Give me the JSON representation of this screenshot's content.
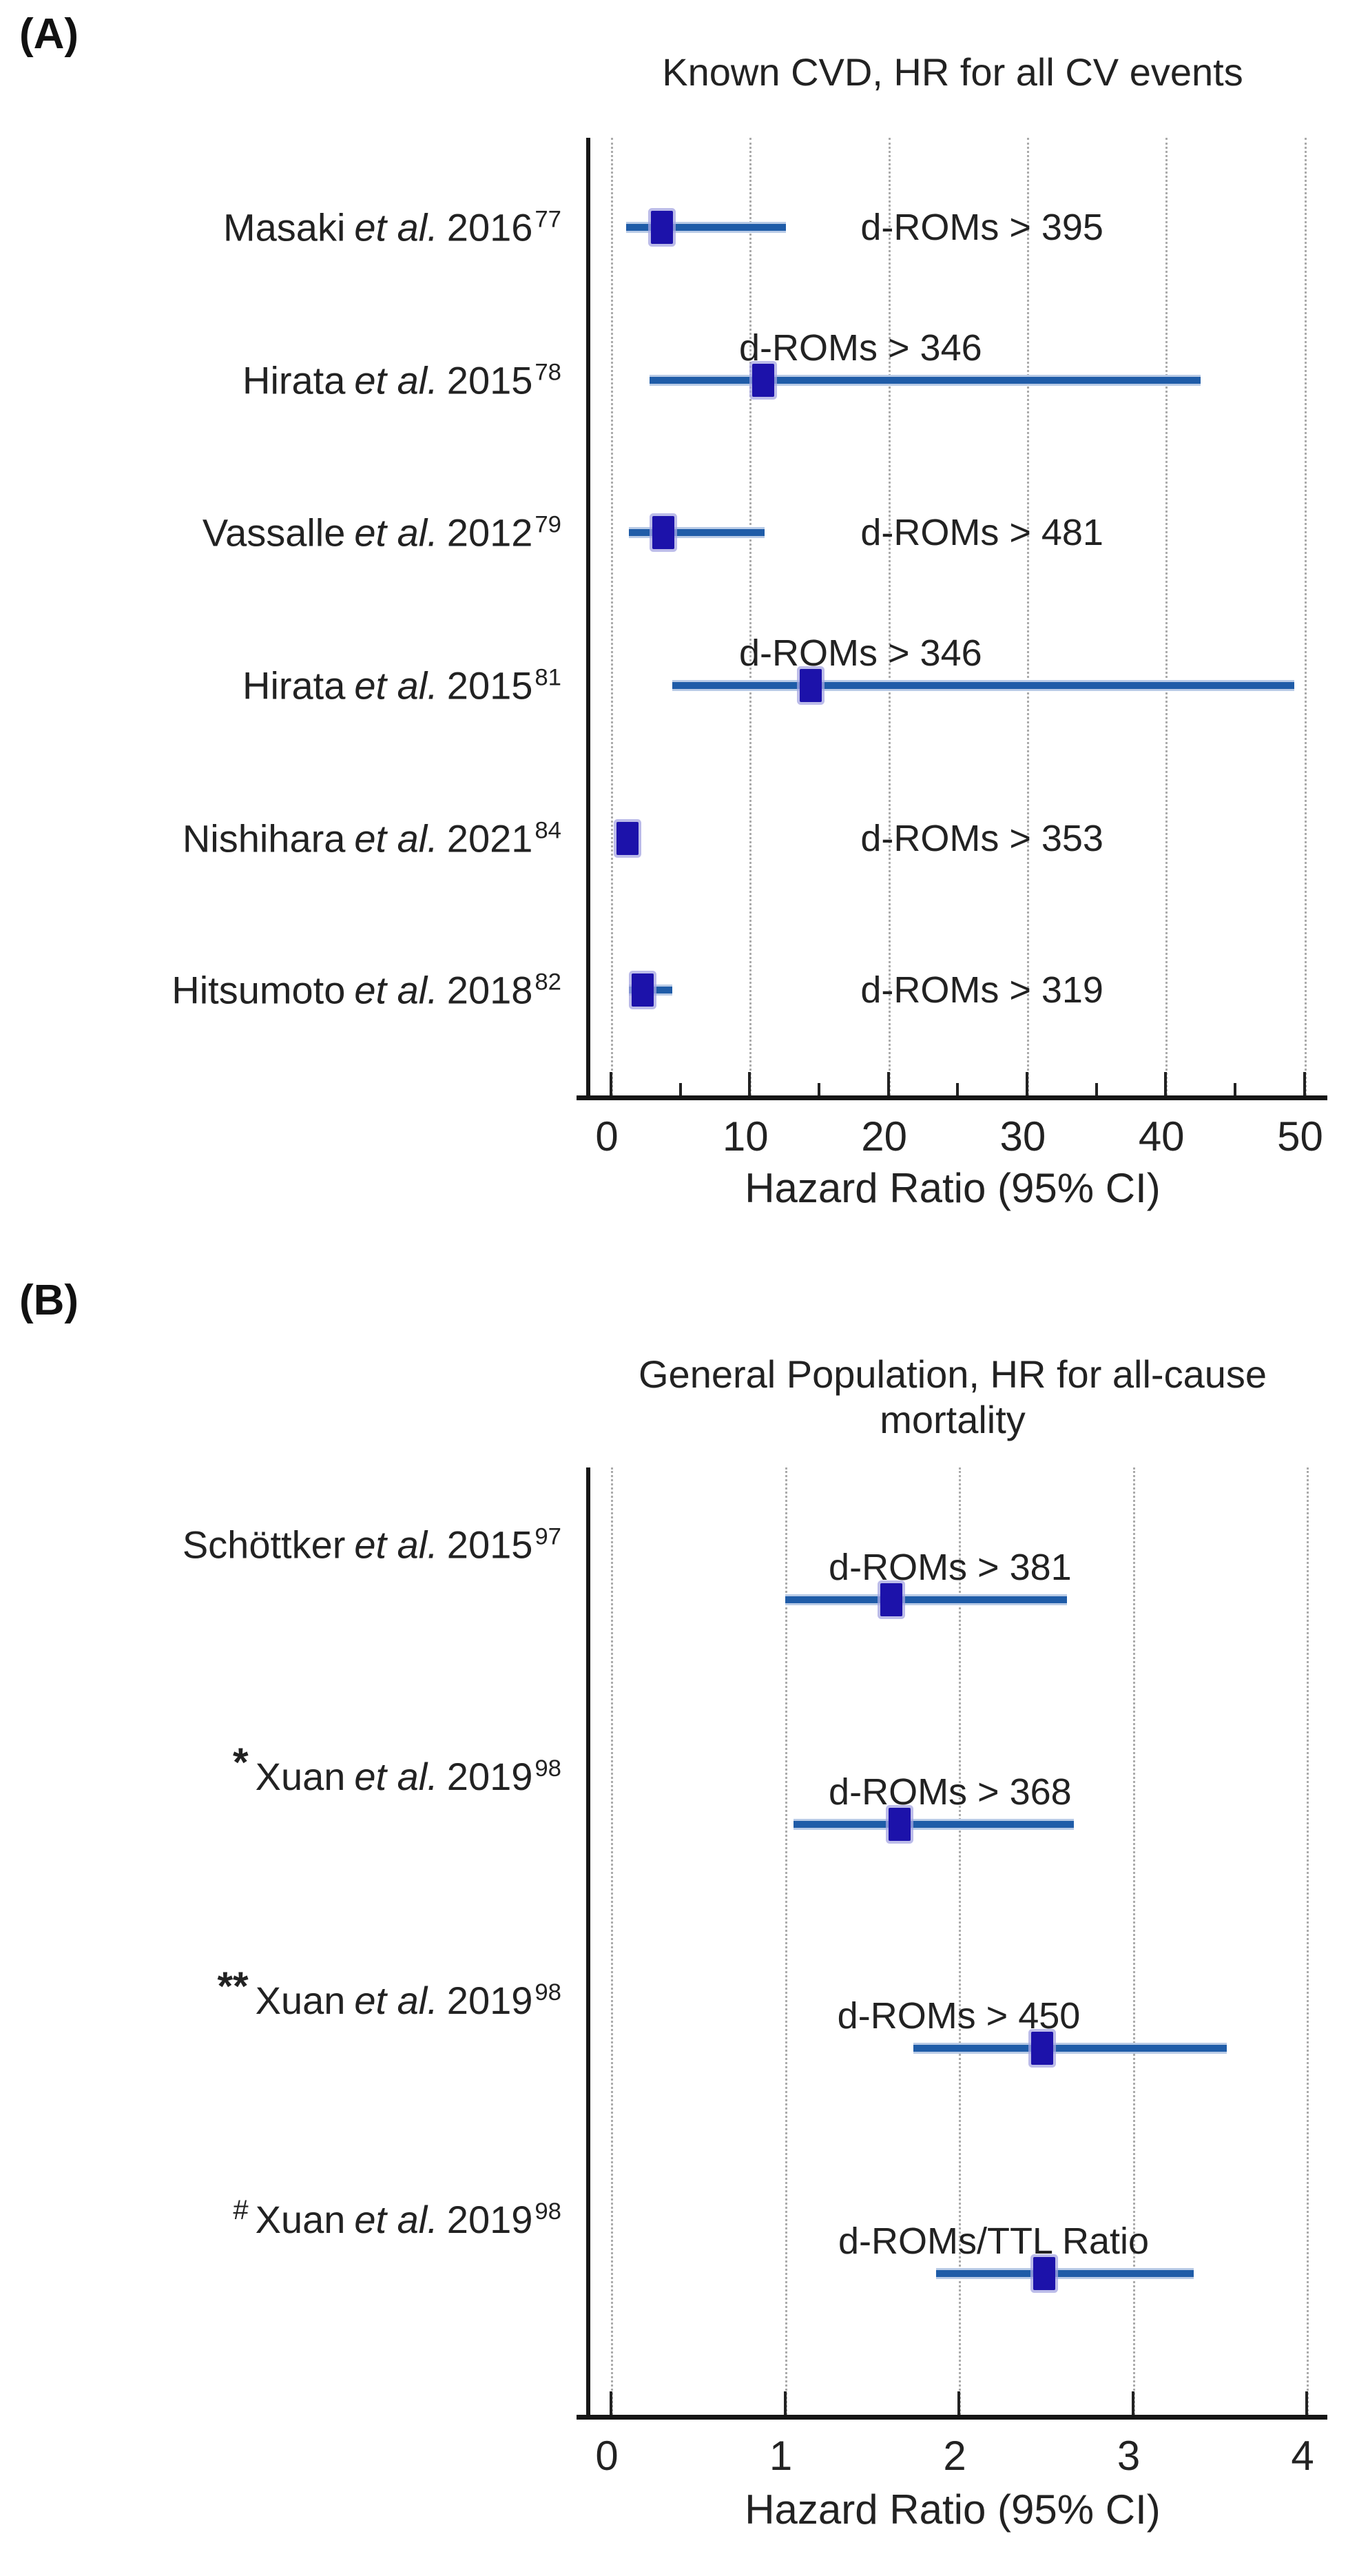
{
  "colors": {
    "marker": "#1c12aa",
    "marker_halo": "#a6a6e2",
    "ci_line": "#1f5ca8",
    "ci_halo": "#b9cbe6",
    "gridline": "#ababab",
    "axis": "#161616",
    "text": "#222222"
  },
  "chart_data": [
    {
      "type": "scatter",
      "subtype": "forest-plot",
      "panel_tag": "(A)",
      "title": "Known CVD, HR for all CV events",
      "title_lines": [
        "Known CVD, HR for all CV events"
      ],
      "xlabel": "Hazard Ratio (95% CI)",
      "xlim": [
        0,
        50
      ],
      "xticks": [
        0,
        10,
        20,
        30,
        40,
        50
      ],
      "minor_xticks": [
        5,
        15,
        25,
        35,
        45
      ],
      "grid": "vertical dotted lines at major ticks",
      "legend": "none",
      "rows": [
        {
          "study": "Masaki",
          "etal": "et al.",
          "year": "2016",
          "ref": "77",
          "label": "d-ROMs > 395",
          "hr": 3.7,
          "ci_low": 1.1,
          "ci_high": 12.6,
          "label_pos": "right",
          "label_x": 18
        },
        {
          "study": "Hirata",
          "etal": "et al.",
          "year": "2015",
          "ref": "78",
          "label": "d-ROMs > 346",
          "hr": 11.0,
          "ci_low": 2.8,
          "ci_high": 42.5,
          "label_pos": "above",
          "label_x": 18
        },
        {
          "study": "Vassalle",
          "etal": "et al.",
          "year": "2012",
          "ref": "79",
          "label": "d-ROMs > 481",
          "hr": 3.8,
          "ci_low": 1.3,
          "ci_high": 11.1,
          "label_pos": "right",
          "label_x": 18
        },
        {
          "study": "Hirata",
          "etal": "et al.",
          "year": "2015",
          "ref": "81",
          "label": "d-ROMs > 346",
          "hr": 14.4,
          "ci_low": 4.4,
          "ci_high": 49.3,
          "label_pos": "above",
          "label_x": 18
        },
        {
          "study": "Nishihara",
          "etal": "et al.",
          "year": "2021",
          "ref": "84",
          "label": "d-ROMs > 353",
          "hr": 1.2,
          "ci_low": 1.1,
          "ci_high": 1.4,
          "label_pos": "right",
          "label_x": 18
        },
        {
          "study": "Hitsumoto",
          "etal": "et al.",
          "year": "2018",
          "ref": "82",
          "label": "d-ROMs > 319",
          "hr": 2.3,
          "ci_low": 1.3,
          "ci_high": 4.4,
          "label_pos": "right",
          "label_x": 18
        }
      ]
    },
    {
      "type": "scatter",
      "subtype": "forest-plot",
      "panel_tag": "(B)",
      "title": "General Population,  HR for all-cause mortality",
      "title_lines": [
        "General Population,  HR for all-cause",
        "mortality"
      ],
      "xlabel": "Hazard Ratio (95% CI)",
      "xlim": [
        0,
        4
      ],
      "xticks": [
        0,
        1,
        2,
        3,
        4
      ],
      "minor_xticks": [],
      "grid": "vertical dotted lines at major ticks",
      "legend": "none",
      "rows": [
        {
          "prefix": "",
          "study": "Schöttker",
          "etal": "et al.",
          "year": "2015",
          "ref": "97",
          "label": "d-ROMs > 381",
          "hr": 1.61,
          "ci_low": 1.0,
          "ci_high": 2.62,
          "label_pos": "above",
          "label_x": 1.95
        },
        {
          "prefix": "*",
          "study": "Xuan",
          "etal": "et al.",
          "year": "2019",
          "ref": "98",
          "label": "d-ROMs > 368",
          "hr": 1.66,
          "ci_low": 1.05,
          "ci_high": 2.66,
          "label_pos": "above",
          "label_x": 1.95
        },
        {
          "prefix": "**",
          "study": "Xuan",
          "etal": "et al.",
          "year": "2019",
          "ref": "98",
          "label": "d-ROMs > 450",
          "hr": 2.48,
          "ci_low": 1.74,
          "ci_high": 3.54,
          "label_pos": "above",
          "label_x": 2.0
        },
        {
          "prefix": "#",
          "study": "Xuan",
          "etal": "et al.",
          "year": "2019",
          "ref": "98",
          "label": "d-ROMs/TTL Ratio",
          "hr": 2.49,
          "ci_low": 1.87,
          "ci_high": 3.35,
          "label_pos": "above",
          "label_x": 2.2
        }
      ]
    }
  ]
}
